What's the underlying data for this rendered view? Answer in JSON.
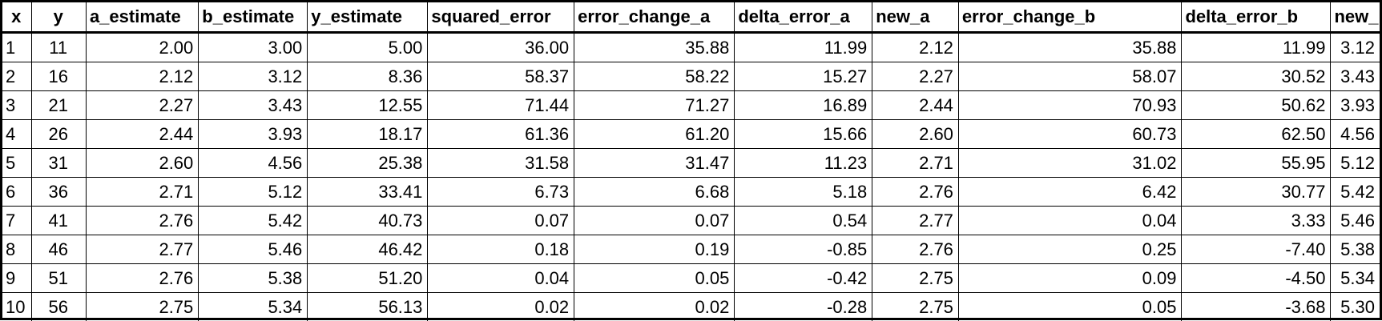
{
  "table": {
    "columns": [
      "x",
      "y",
      "a_estimate",
      "b_estimate",
      "y_estimate",
      "squared_error",
      "error_change_a",
      "delta_error_a",
      "new_a",
      "error_change_b",
      "delta_error_b",
      "new_b"
    ],
    "rows": [
      [
        "1",
        "11",
        "2.00",
        "3.00",
        "5.00",
        "36.00",
        "35.88",
        "11.99",
        "2.12",
        "35.88",
        "11.99",
        "3.12"
      ],
      [
        "2",
        "16",
        "2.12",
        "3.12",
        "8.36",
        "58.37",
        "58.22",
        "15.27",
        "2.27",
        "58.07",
        "30.52",
        "3.43"
      ],
      [
        "3",
        "21",
        "2.27",
        "3.43",
        "12.55",
        "71.44",
        "71.27",
        "16.89",
        "2.44",
        "70.93",
        "50.62",
        "3.93"
      ],
      [
        "4",
        "26",
        "2.44",
        "3.93",
        "18.17",
        "61.36",
        "61.20",
        "15.66",
        "2.60",
        "60.73",
        "62.50",
        "4.56"
      ],
      [
        "5",
        "31",
        "2.60",
        "4.56",
        "25.38",
        "31.58",
        "31.47",
        "11.23",
        "2.71",
        "31.02",
        "55.95",
        "5.12"
      ],
      [
        "6",
        "36",
        "2.71",
        "5.12",
        "33.41",
        "6.73",
        "6.68",
        "5.18",
        "2.76",
        "6.42",
        "30.77",
        "5.42"
      ],
      [
        "7",
        "41",
        "2.76",
        "5.42",
        "40.73",
        "0.07",
        "0.07",
        "0.54",
        "2.77",
        "0.04",
        "3.33",
        "5.46"
      ],
      [
        "8",
        "46",
        "2.77",
        "5.46",
        "46.42",
        "0.18",
        "0.19",
        "-0.85",
        "2.76",
        "0.25",
        "-7.40",
        "5.38"
      ],
      [
        "9",
        "51",
        "2.76",
        "5.38",
        "51.20",
        "0.04",
        "0.05",
        "-0.42",
        "2.75",
        "0.09",
        "-4.50",
        "5.34"
      ],
      [
        "10",
        "56",
        "2.75",
        "5.34",
        "56.13",
        "0.02",
        "0.02",
        "-0.28",
        "2.75",
        "0.05",
        "-3.68",
        "5.30"
      ]
    ]
  }
}
